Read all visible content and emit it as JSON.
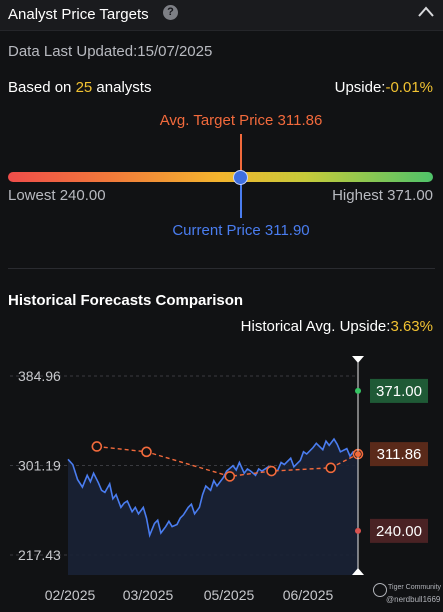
{
  "header": {
    "title": "Analyst Price Targets",
    "help_icon": "?"
  },
  "summary": {
    "updated_label": "Data Last Updated:",
    "updated_value": "15/07/2025",
    "based_prefix": "Based on ",
    "analyst_count": "25",
    "based_suffix": " analysts",
    "upside_label": "Upside:",
    "upside_value": "-0.01%"
  },
  "range": {
    "avg_label": "Avg. Target Price 311.86",
    "current_label": "Current Price 311.90",
    "lowest_label": "Lowest 240.00",
    "highest_label": "Highest 371.00"
  },
  "history": {
    "title": "Historical Forecasts Comparison",
    "avg_upside_label": "Historical Avg. Upside:",
    "avg_upside_value": "3.63%"
  },
  "chart_data": {
    "type": "line",
    "ylim": [
      217.43,
      384.96
    ],
    "y_ticks": [
      "384.96",
      "301.19",
      "217.43"
    ],
    "x_ticks": [
      "02/2025",
      "03/2025",
      "05/2025",
      "06/2025"
    ],
    "x_range": [
      "2025-01-15",
      "2025-07-15"
    ],
    "series": [
      {
        "kind": "price",
        "points": [
          [
            "2025-01-15",
            307
          ],
          [
            "2025-01-18",
            302
          ],
          [
            "2025-01-21",
            288
          ],
          [
            "2025-01-24",
            281
          ],
          [
            "2025-01-27",
            292
          ],
          [
            "2025-01-29",
            286
          ],
          [
            "2025-01-31",
            294
          ],
          [
            "2025-02-03",
            285
          ],
          [
            "2025-02-05",
            278
          ],
          [
            "2025-02-07",
            276
          ],
          [
            "2025-02-10",
            284
          ],
          [
            "2025-02-12",
            270
          ],
          [
            "2025-02-14",
            274
          ],
          [
            "2025-02-17",
            262
          ],
          [
            "2025-02-19",
            266
          ],
          [
            "2025-02-21",
            268
          ],
          [
            "2025-02-24",
            258
          ],
          [
            "2025-02-26",
            262
          ],
          [
            "2025-02-28",
            256
          ],
          [
            "2025-03-03",
            262
          ],
          [
            "2025-03-05",
            252
          ],
          [
            "2025-03-07",
            236
          ],
          [
            "2025-03-10",
            247
          ],
          [
            "2025-03-12",
            250
          ],
          [
            "2025-03-14",
            238
          ],
          [
            "2025-03-17",
            244
          ],
          [
            "2025-03-19",
            249
          ],
          [
            "2025-03-21",
            244
          ],
          [
            "2025-03-24",
            246
          ],
          [
            "2025-03-26",
            252
          ],
          [
            "2025-03-28",
            255
          ],
          [
            "2025-03-31",
            262
          ],
          [
            "2025-04-02",
            265
          ],
          [
            "2025-04-04",
            256
          ],
          [
            "2025-04-07",
            262
          ],
          [
            "2025-04-09",
            274
          ],
          [
            "2025-04-11",
            282
          ],
          [
            "2025-04-14",
            278
          ],
          [
            "2025-04-16",
            287
          ],
          [
            "2025-04-18",
            282
          ],
          [
            "2025-04-22",
            290
          ],
          [
            "2025-04-24",
            296
          ],
          [
            "2025-04-28",
            301
          ],
          [
            "2025-04-30",
            297
          ],
          [
            "2025-05-02",
            304
          ],
          [
            "2025-05-05",
            294
          ],
          [
            "2025-05-07",
            298
          ],
          [
            "2025-05-09",
            296
          ],
          [
            "2025-05-12",
            292
          ],
          [
            "2025-05-14",
            298
          ],
          [
            "2025-05-16",
            296
          ],
          [
            "2025-05-20",
            300
          ],
          [
            "2025-05-22",
            293
          ],
          [
            "2025-05-26",
            297
          ],
          [
            "2025-05-28",
            304
          ],
          [
            "2025-05-30",
            302
          ],
          [
            "2025-06-03",
            308
          ],
          [
            "2025-06-05",
            300
          ],
          [
            "2025-06-09",
            306
          ],
          [
            "2025-06-11",
            314
          ],
          [
            "2025-06-13",
            312
          ],
          [
            "2025-06-17",
            318
          ],
          [
            "2025-06-19",
            322
          ],
          [
            "2025-06-23",
            316
          ],
          [
            "2025-06-25",
            324
          ],
          [
            "2025-06-27",
            320
          ],
          [
            "2025-06-30",
            326
          ],
          [
            "2025-07-02",
            321
          ],
          [
            "2025-07-04",
            314
          ],
          [
            "2025-07-08",
            317
          ],
          [
            "2025-07-10",
            310
          ],
          [
            "2025-07-12",
            314
          ],
          [
            "2025-07-15",
            311.9
          ]
        ]
      },
      {
        "kind": "avg_target_history",
        "points": [
          [
            "2025-02-02",
            319
          ],
          [
            "2025-03-05",
            314
          ],
          [
            "2025-04-26",
            291
          ],
          [
            "2025-05-22",
            296
          ],
          [
            "2025-06-28",
            299
          ],
          [
            "2025-07-15",
            311.86
          ]
        ]
      }
    ],
    "badges": [
      {
        "label": "371.00",
        "value": 371.0,
        "color": "#1f5a36",
        "dot": "#36c463"
      },
      {
        "label": "311.86",
        "value": 311.86,
        "color": "#5a2a1a",
        "dot": "#f26a3c"
      },
      {
        "label": "240.00",
        "value": 240.0,
        "color": "#4a2224",
        "dot": "#d9534f"
      }
    ]
  },
  "watermark": {
    "line1": "Tiger Community",
    "line2": "@nerdbull1669"
  },
  "colors": {
    "avg": "#f26a3c",
    "current": "#4a7df0",
    "price_line": "#4a7df0",
    "highlight": "#f1c232",
    "up": "#36c463",
    "down": "#d9534f"
  }
}
